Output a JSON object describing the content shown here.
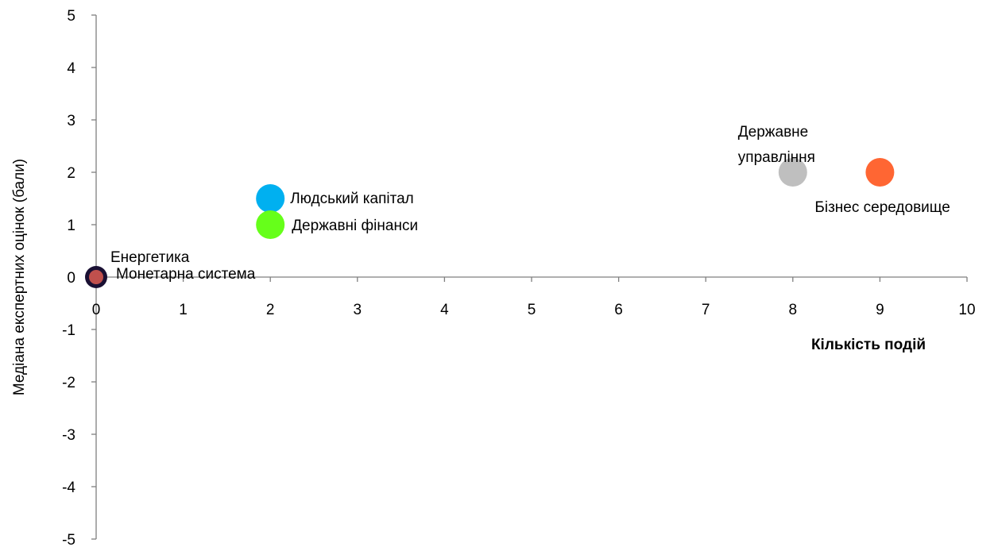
{
  "chart_data": {
    "type": "scatter",
    "xlabel": "Кількість подій",
    "ylabel": "Медіана експертних оцінок (бали)",
    "xlim": [
      0,
      10
    ],
    "ylim": [
      -5,
      5
    ],
    "x_ticks": [
      "0",
      "1",
      "2",
      "3",
      "4",
      "5",
      "6",
      "7",
      "8",
      "9",
      "10"
    ],
    "y_ticks": [
      "5",
      "4",
      "3",
      "2",
      "1",
      "0",
      "-1",
      "-2",
      "-3",
      "-4",
      "-5"
    ],
    "grid": false,
    "series": [
      {
        "name": "Енергетика",
        "x": 0,
        "y": 0,
        "color": "#1a1033"
      },
      {
        "name": "Монетарна система",
        "x": 0,
        "y": 0,
        "color": "#c0504d"
      },
      {
        "name": "Людський капітал",
        "x": 2,
        "y": 1.5,
        "color": "#00b0f0"
      },
      {
        "name": "Державні фінанси",
        "x": 2,
        "y": 1,
        "color": "#66ff1a"
      },
      {
        "name": "Державне управління",
        "x": 8,
        "y": 2,
        "color": "#bfbfbf"
      },
      {
        "name": "Бізнес середовище",
        "x": 9,
        "y": 2,
        "color": "#ff6633"
      }
    ],
    "label_lines": {
      "Державне управління": [
        "Державне",
        "управління"
      ]
    }
  }
}
